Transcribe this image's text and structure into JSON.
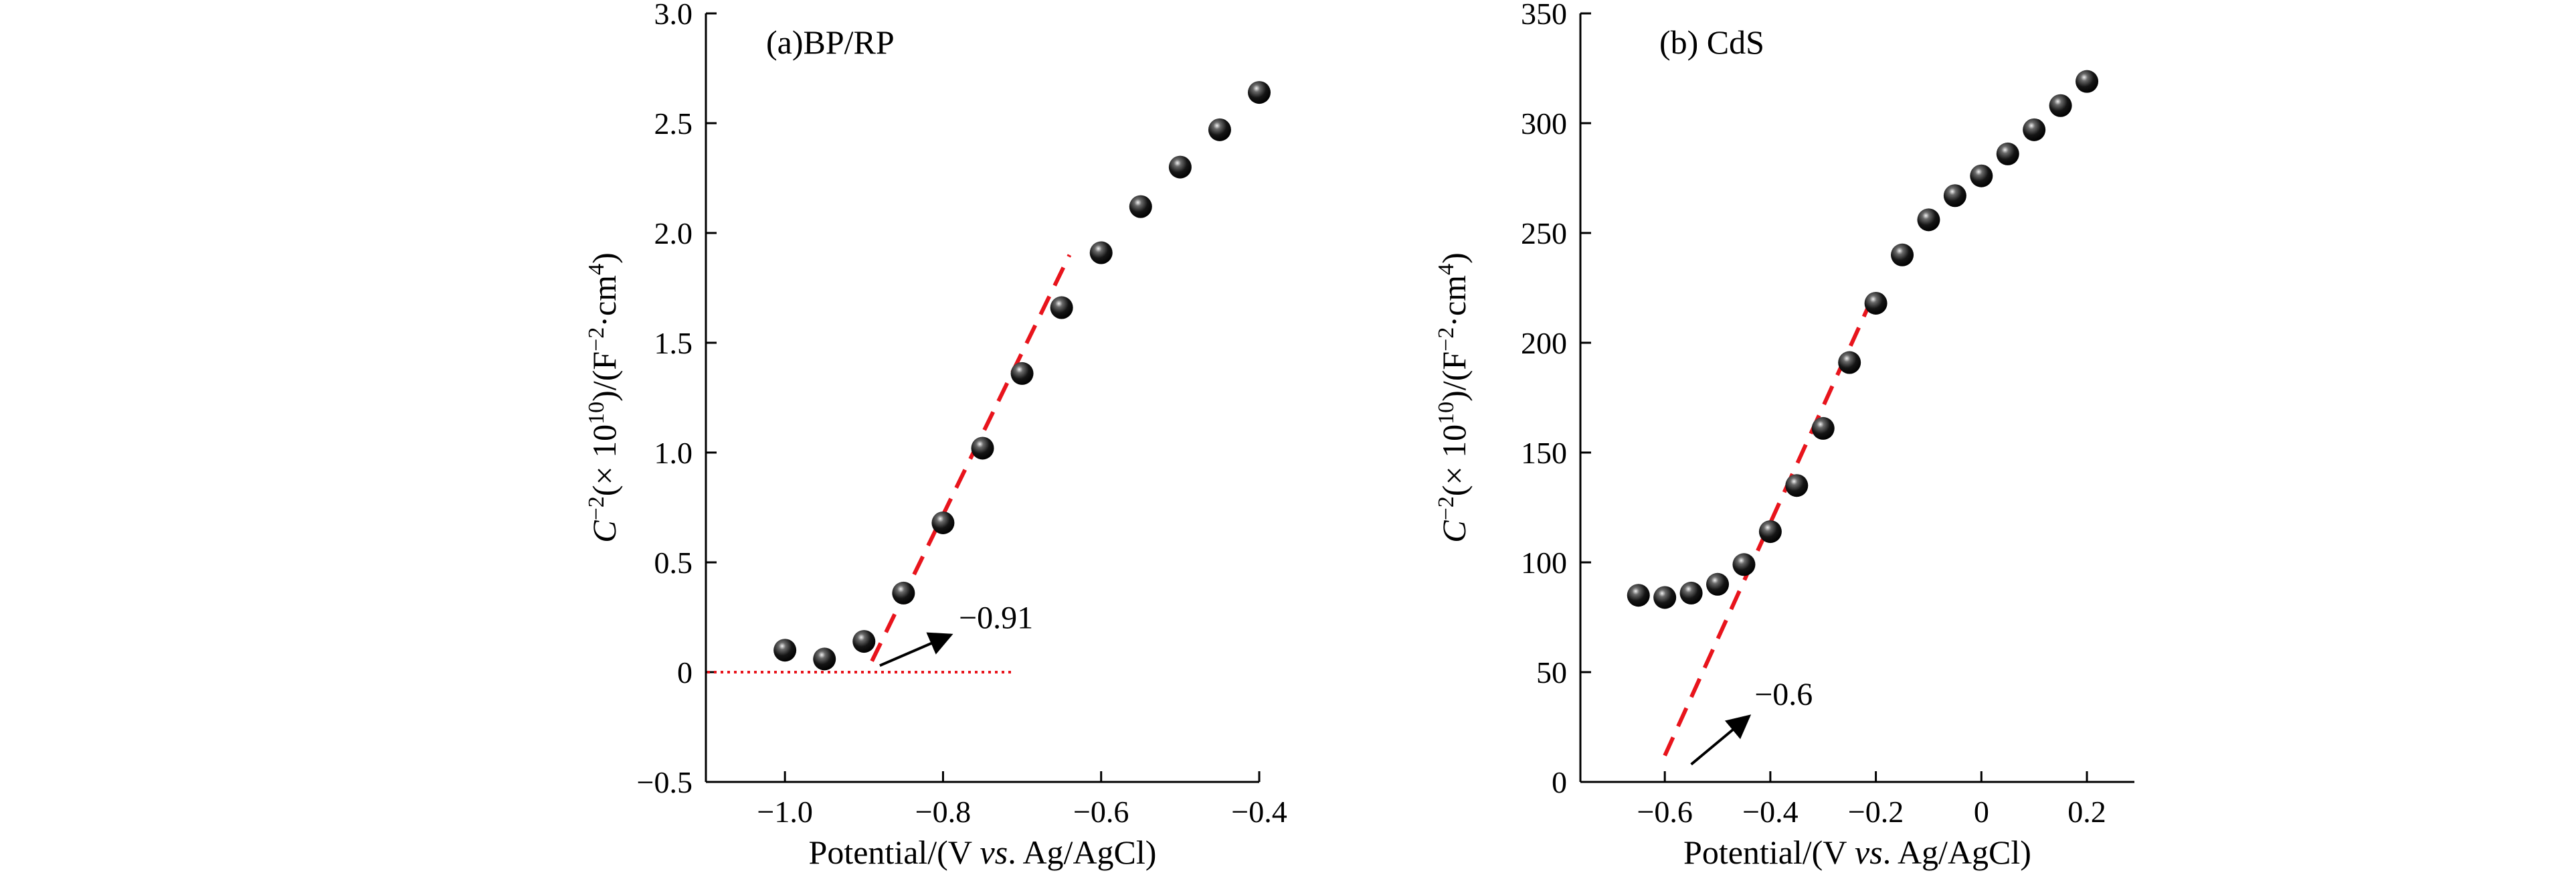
{
  "chart_data": [
    {
      "type": "scatter",
      "panel_label": "(a)BP/RP",
      "xlabel_parts": [
        "Potential/(V ",
        "vs",
        ". Ag/AgCl)"
      ],
      "ylabel_parts": {
        "c": "C",
        "c_exp": "−2",
        "mid": "(× 10",
        "mid_exp": "10",
        "end": ")/(F",
        "end_exp": "−2",
        "unit": "·cm",
        "unit_exp": "4",
        "close": ")"
      },
      "xlim": [
        -1.1,
        -0.4
      ],
      "ylim": [
        -0.5,
        3.0
      ],
      "xticks": [
        -1.0,
        -0.8,
        -0.6,
        -0.4
      ],
      "xtick_labels": [
        "−1.0",
        "−0.8",
        "−0.6",
        "−0.4"
      ],
      "yticks": [
        -0.5,
        0,
        0.5,
        1.0,
        1.5,
        2.0,
        2.5,
        3.0
      ],
      "ytick_labels": [
        "−0.5",
        "0",
        "0.5",
        "1.0",
        "1.5",
        "2.0",
        "2.5",
        "3.0"
      ],
      "series": [
        {
          "x": [
            -1.0,
            -0.95,
            -0.9,
            -0.85,
            -0.8,
            -0.75,
            -0.7,
            -0.65,
            -0.6,
            -0.55,
            -0.5,
            -0.45,
            -0.4
          ],
          "y": [
            0.1,
            0.06,
            0.14,
            0.36,
            0.68,
            1.02,
            1.36,
            1.66,
            1.91,
            2.12,
            2.3,
            2.47,
            2.64
          ]
        }
      ],
      "fit_line": {
        "x": [
          -0.89,
          -0.64
        ],
        "y": [
          0.05,
          1.9
        ],
        "color": "#e8141c",
        "style": "dashed"
      },
      "baseline": {
        "x": [
          -1.1,
          -0.71
        ],
        "y": [
          0,
          0
        ],
        "color": "#e8141c",
        "style": "dotted"
      },
      "annotation": {
        "text": "−0.91",
        "arrow_from": [
          -0.88,
          0.03
        ],
        "arrow_to": [
          -0.79,
          0.17
        ],
        "text_at": [
          -0.78,
          0.2
        ]
      },
      "grid": false
    },
    {
      "type": "scatter",
      "panel_label": "(b) CdS",
      "xlabel_parts": [
        "Potential/(V ",
        "vs",
        ". Ag/AgCl)"
      ],
      "ylabel_parts": {
        "c": "C",
        "c_exp": "−2",
        "mid": "(× 10",
        "mid_exp": "10",
        "end": ")/(F",
        "end_exp": "−2",
        "unit": "·cm",
        "unit_exp": "4",
        "close": ")"
      },
      "xlim": [
        -0.76,
        0.29
      ],
      "ylim": [
        0,
        350
      ],
      "xticks": [
        -0.6,
        -0.4,
        -0.2,
        0,
        0.2
      ],
      "xtick_labels": [
        "−0.6",
        "−0.4",
        "−0.2",
        "0",
        "0.2"
      ],
      "yticks": [
        0,
        50,
        100,
        150,
        200,
        250,
        300,
        350
      ],
      "ytick_labels": [
        "0",
        "50",
        "100",
        "150",
        "200",
        "250",
        "300",
        "350"
      ],
      "series": [
        {
          "x": [
            -0.65,
            -0.6,
            -0.55,
            -0.5,
            -0.45,
            -0.4,
            -0.35,
            -0.3,
            -0.25,
            -0.2,
            -0.15,
            -0.1,
            -0.05,
            0.0,
            0.05,
            0.1,
            0.15,
            0.2
          ],
          "y": [
            85,
            84,
            86,
            90,
            99,
            114,
            135,
            161,
            191,
            218,
            240,
            256,
            267,
            276,
            286,
            297,
            308,
            319
          ]
        }
      ],
      "fit_line": {
        "x": [
          -0.6,
          -0.2
        ],
        "y": [
          12,
          224
        ],
        "color": "#e8141c",
        "style": "dashed"
      },
      "annotation": {
        "text": "−0.6",
        "arrow_from": [
          -0.55,
          8
        ],
        "arrow_to": [
          -0.44,
          30
        ],
        "text_at": [
          -0.43,
          35
        ]
      },
      "grid": false
    }
  ]
}
